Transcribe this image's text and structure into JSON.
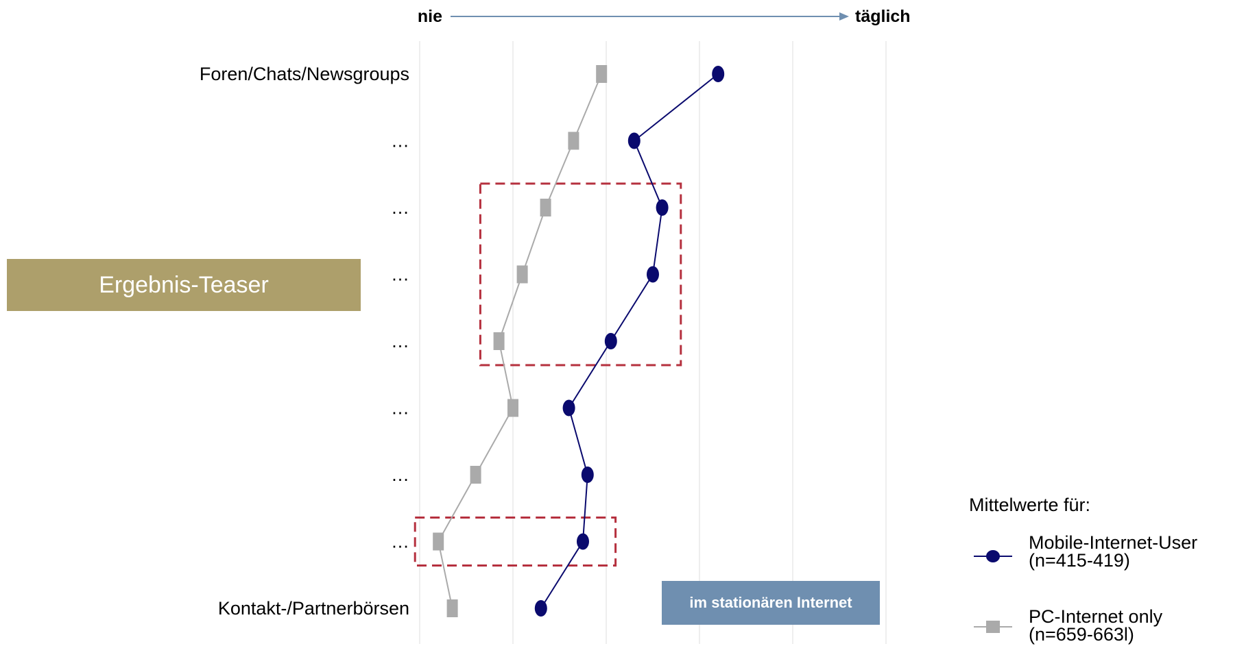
{
  "chart_data": {
    "type": "line",
    "orientation": "horizontal",
    "title": "",
    "scale": {
      "left_label": "nie",
      "right_label": "täglich"
    },
    "categories": [
      "Foren/Chats/Newsgroups",
      "…",
      "…",
      "…",
      "…",
      "…",
      "…",
      "…",
      "Kontakt-/Partnerbörsen"
    ],
    "xlim": [
      0,
      5
    ],
    "grid": true,
    "series": [
      {
        "name": "Mobile-Internet-User",
        "n_label": "(n=415-419)",
        "color": "#0a0a6e",
        "marker": "circle",
        "values": [
          3.2,
          2.3,
          2.6,
          2.5,
          2.05,
          1.6,
          1.8,
          1.75,
          1.3
        ]
      },
      {
        "name": "PC-Internet only",
        "n_label": "(n=659-663l)",
        "color": "#aaaaaa",
        "marker": "square",
        "values": [
          1.95,
          1.65,
          1.35,
          1.1,
          0.85,
          1.0,
          0.6,
          0.2,
          0.35
        ]
      }
    ],
    "highlight_boxes": [
      {
        "category_range": [
          2,
          4
        ],
        "x_range": [
          0.65,
          2.8
        ]
      },
      {
        "category_range": [
          7,
          7
        ],
        "x_range": [
          -0.05,
          2.1
        ]
      }
    ],
    "legend": {
      "title": "Mittelwerte für:",
      "position": "bottom-right"
    }
  },
  "teaser": {
    "label": "Ergebnis-Teaser",
    "color": "#ad9f6b"
  },
  "badge": {
    "label": "im stationären Internet",
    "color": "#6f8fb0"
  }
}
